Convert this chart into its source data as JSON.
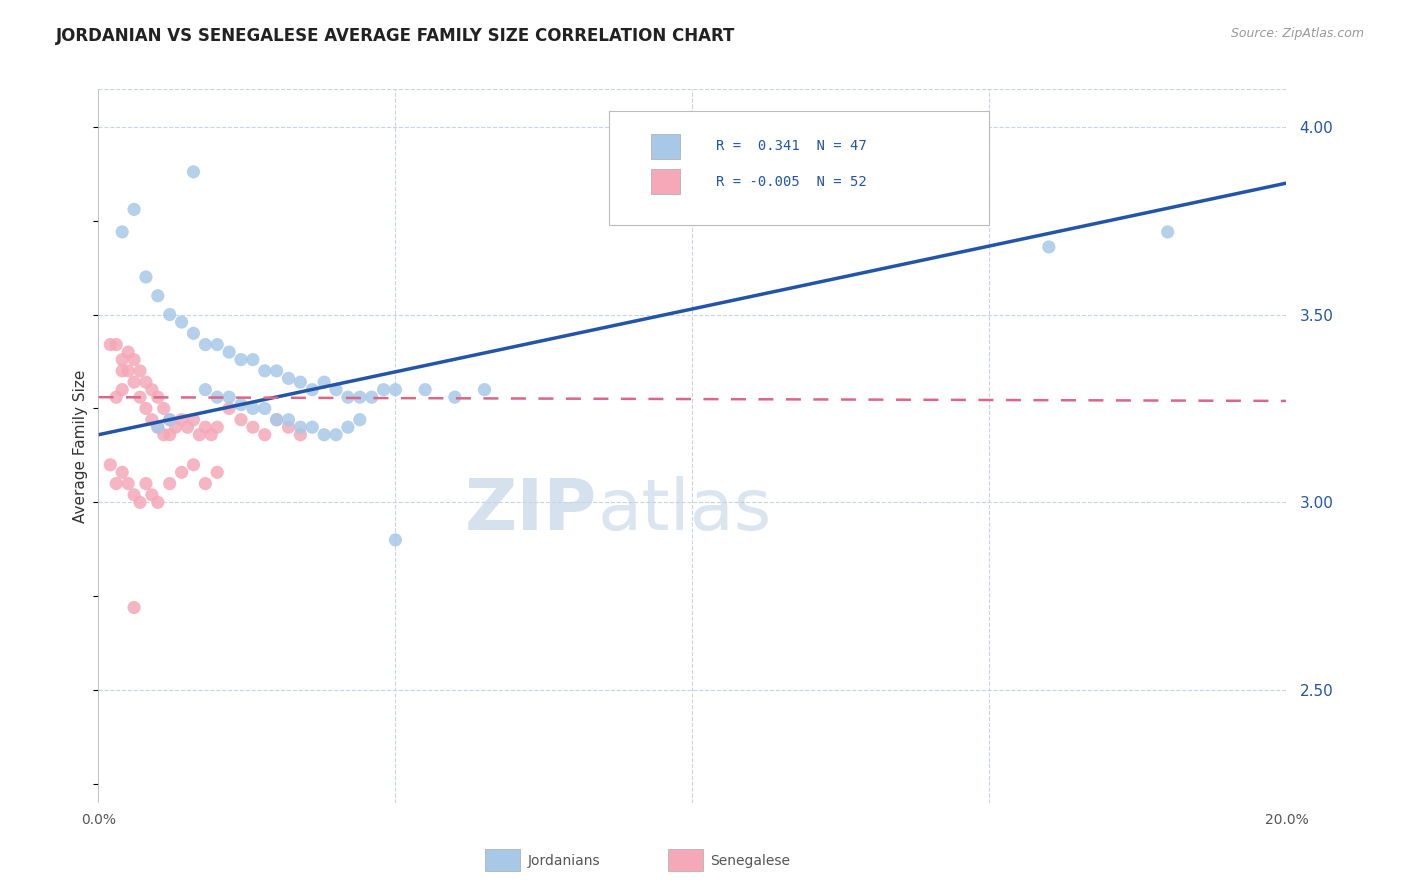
{
  "title": "JORDANIAN VS SENEGALESE AVERAGE FAMILY SIZE CORRELATION CHART",
  "source": "Source: ZipAtlas.com",
  "ylabel": "Average Family Size",
  "right_yticks": [
    4.0,
    3.5,
    3.0,
    2.5
  ],
  "xlim": [
    0.0,
    0.2
  ],
  "ylim": [
    2.2,
    4.1
  ],
  "legend_r1": "R =  0.341  N = 47",
  "legend_r2": "R = -0.005  N = 52",
  "jordan_color": "#a8c8e8",
  "senegal_color": "#f4a8b8",
  "jordan_line_color": "#2255aa",
  "senegal_line_color": "#dd6688",
  "background_color": "#ffffff",
  "grid_color": "#c8d4e4",
  "jordan_line_x": [
    0.0,
    0.2
  ],
  "jordan_line_y": [
    3.18,
    3.85
  ],
  "senegal_line_x": [
    0.0,
    0.2
  ],
  "senegal_line_y": [
    3.28,
    3.27
  ],
  "jordan_points": [
    [
      0.004,
      3.72
    ],
    [
      0.008,
      3.6
    ],
    [
      0.01,
      3.55
    ],
    [
      0.012,
      3.5
    ],
    [
      0.014,
      3.48
    ],
    [
      0.016,
      3.45
    ],
    [
      0.018,
      3.42
    ],
    [
      0.02,
      3.42
    ],
    [
      0.022,
      3.4
    ],
    [
      0.024,
      3.38
    ],
    [
      0.026,
      3.38
    ],
    [
      0.028,
      3.35
    ],
    [
      0.03,
      3.35
    ],
    [
      0.032,
      3.33
    ],
    [
      0.034,
      3.32
    ],
    [
      0.036,
      3.3
    ],
    [
      0.038,
      3.32
    ],
    [
      0.04,
      3.3
    ],
    [
      0.042,
      3.28
    ],
    [
      0.044,
      3.28
    ],
    [
      0.046,
      3.28
    ],
    [
      0.048,
      3.3
    ],
    [
      0.05,
      3.3
    ],
    [
      0.055,
      3.3
    ],
    [
      0.06,
      3.28
    ],
    [
      0.065,
      3.3
    ],
    [
      0.016,
      3.88
    ],
    [
      0.018,
      3.3
    ],
    [
      0.02,
      3.28
    ],
    [
      0.022,
      3.28
    ],
    [
      0.024,
      3.26
    ],
    [
      0.026,
      3.25
    ],
    [
      0.028,
      3.25
    ],
    [
      0.03,
      3.22
    ],
    [
      0.032,
      3.22
    ],
    [
      0.034,
      3.2
    ],
    [
      0.036,
      3.2
    ],
    [
      0.038,
      3.18
    ],
    [
      0.04,
      3.18
    ],
    [
      0.042,
      3.2
    ],
    [
      0.044,
      3.22
    ],
    [
      0.05,
      2.9
    ],
    [
      0.16,
      3.68
    ],
    [
      0.18,
      3.72
    ],
    [
      0.01,
      3.2
    ],
    [
      0.012,
      3.22
    ],
    [
      0.006,
      3.78
    ]
  ],
  "senegal_points": [
    [
      0.002,
      3.42
    ],
    [
      0.003,
      3.42
    ],
    [
      0.004,
      3.38
    ],
    [
      0.004,
      3.35
    ],
    [
      0.005,
      3.4
    ],
    [
      0.005,
      3.35
    ],
    [
      0.006,
      3.38
    ],
    [
      0.006,
      3.32
    ],
    [
      0.007,
      3.35
    ],
    [
      0.007,
      3.28
    ],
    [
      0.008,
      3.32
    ],
    [
      0.008,
      3.25
    ],
    [
      0.009,
      3.3
    ],
    [
      0.009,
      3.22
    ],
    [
      0.01,
      3.28
    ],
    [
      0.01,
      3.2
    ],
    [
      0.011,
      3.25
    ],
    [
      0.011,
      3.18
    ],
    [
      0.012,
      3.22
    ],
    [
      0.012,
      3.18
    ],
    [
      0.013,
      3.2
    ],
    [
      0.014,
      3.22
    ],
    [
      0.015,
      3.2
    ],
    [
      0.016,
      3.22
    ],
    [
      0.017,
      3.18
    ],
    [
      0.018,
      3.2
    ],
    [
      0.019,
      3.18
    ],
    [
      0.02,
      3.2
    ],
    [
      0.022,
      3.25
    ],
    [
      0.024,
      3.22
    ],
    [
      0.026,
      3.2
    ],
    [
      0.028,
      3.18
    ],
    [
      0.03,
      3.22
    ],
    [
      0.032,
      3.2
    ],
    [
      0.034,
      3.18
    ],
    [
      0.003,
      3.28
    ],
    [
      0.004,
      3.3
    ],
    [
      0.002,
      3.1
    ],
    [
      0.003,
      3.05
    ],
    [
      0.004,
      3.08
    ],
    [
      0.005,
      3.05
    ],
    [
      0.006,
      3.02
    ],
    [
      0.007,
      3.0
    ],
    [
      0.008,
      3.05
    ],
    [
      0.009,
      3.02
    ],
    [
      0.01,
      3.0
    ],
    [
      0.012,
      3.05
    ],
    [
      0.014,
      3.08
    ],
    [
      0.016,
      3.1
    ],
    [
      0.018,
      3.05
    ],
    [
      0.02,
      3.08
    ],
    [
      0.006,
      2.72
    ]
  ]
}
